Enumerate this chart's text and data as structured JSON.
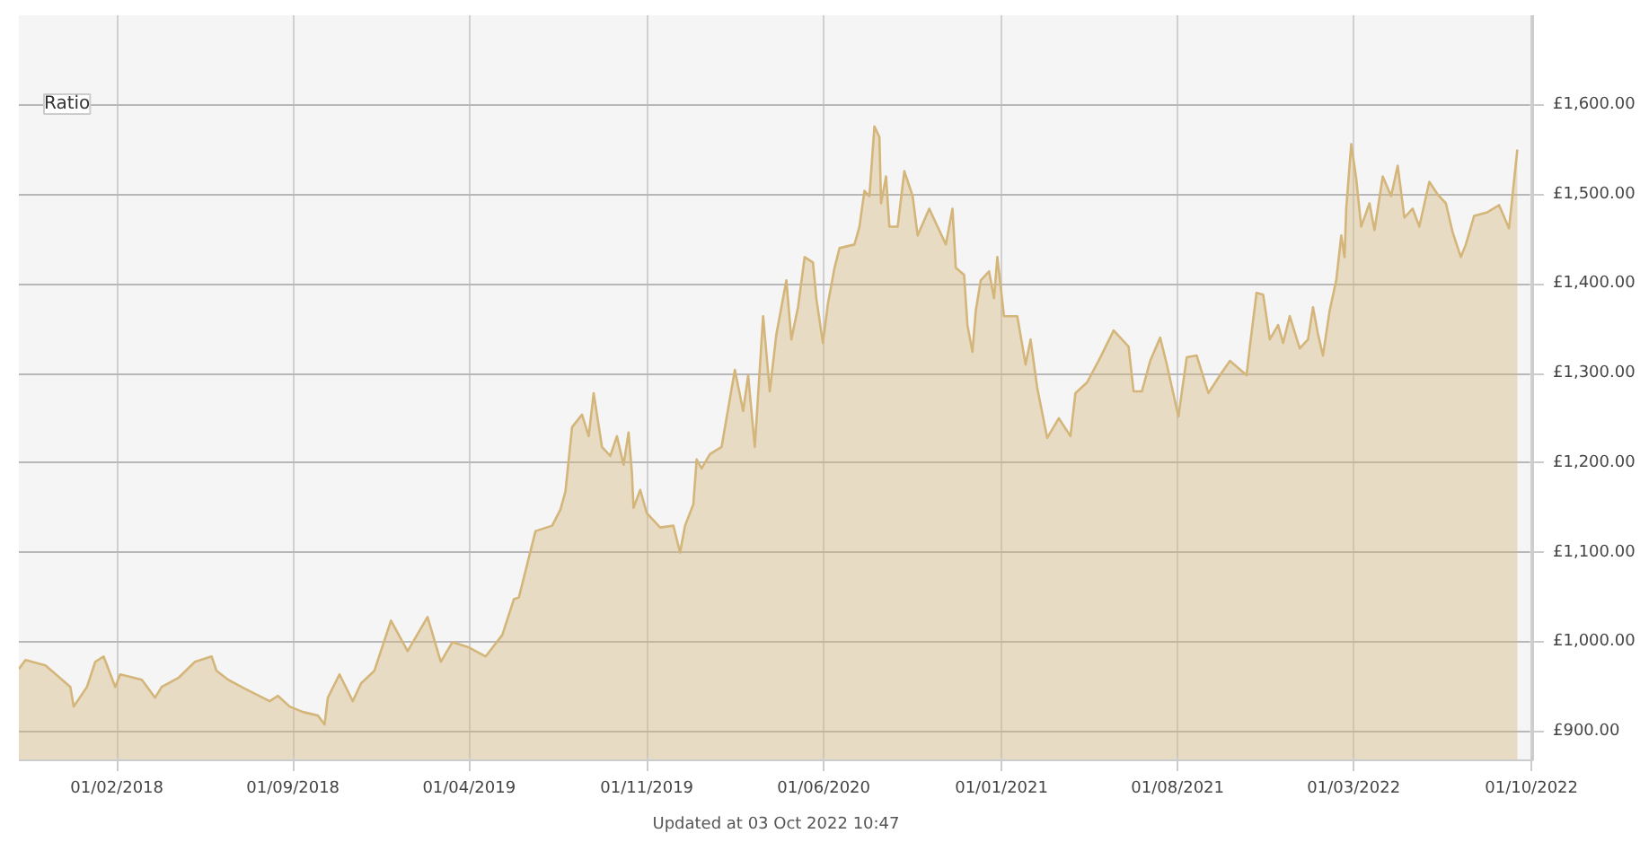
{
  "chart_data": {
    "type": "area",
    "annotations": [
      "Ratio",
      "Updated at 03 Oct 2022 10:47"
    ],
    "x": [
      "2017-10-06",
      "2017-10-14",
      "2017-11-07",
      "2017-12-07",
      "2017-12-11",
      "2017-12-27",
      "2018-01-06",
      "2018-01-16",
      "2018-01-30",
      "2018-02-05",
      "2018-03-03",
      "2018-03-19",
      "2018-03-27",
      "2018-04-16",
      "2018-05-06",
      "2018-05-26",
      "2018-06-01",
      "2018-06-15",
      "2018-07-05",
      "2018-08-04",
      "2018-08-14",
      "2018-08-28",
      "2018-09-13",
      "2018-10-01",
      "2018-10-09",
      "2018-10-13",
      "2018-10-27",
      "2018-11-12",
      "2018-11-22",
      "2018-12-08",
      "2018-12-28",
      "2019-01-17",
      "2019-02-10",
      "2019-02-26",
      "2019-03-12",
      "2019-04-01",
      "2019-04-21",
      "2019-05-11",
      "2019-05-25",
      "2019-05-31",
      "2019-06-20",
      "2019-07-10",
      "2019-07-20",
      "2019-07-26",
      "2019-07-30",
      "2019-08-03",
      "2019-08-15",
      "2019-08-23",
      "2019-08-29",
      "2019-09-08",
      "2019-09-18",
      "2019-09-26",
      "2019-10-04",
      "2019-10-10",
      "2019-10-14",
      "2019-10-16",
      "2019-10-24",
      "2019-11-01",
      "2019-11-17",
      "2019-12-03",
      "2019-12-11",
      "2019-12-17",
      "2019-12-27",
      "2019-12-31",
      "2020-01-06",
      "2020-01-16",
      "2020-01-30",
      "2020-02-15",
      "2020-02-25",
      "2020-03-02",
      "2020-03-10",
      "2020-03-20",
      "2020-03-28",
      "2020-04-05",
      "2020-04-17",
      "2020-04-23",
      "2020-05-01",
      "2020-05-09",
      "2020-05-19",
      "2020-05-23",
      "2020-05-31",
      "2020-06-06",
      "2020-06-14",
      "2020-06-20",
      "2020-07-08",
      "2020-07-14",
      "2020-07-20",
      "2020-07-26",
      "2020-08-01",
      "2020-08-07",
      "2020-08-09",
      "2020-08-15",
      "2020-08-19",
      "2020-08-29",
      "2020-09-06",
      "2020-09-16",
      "2020-09-22",
      "2020-10-06",
      "2020-10-16",
      "2020-10-26",
      "2020-11-03",
      "2020-11-07",
      "2020-11-17",
      "2020-11-21",
      "2020-11-27",
      "2020-12-01",
      "2020-12-07",
      "2020-12-17",
      "2020-12-23",
      "2020-12-27",
      "2021-01-04",
      "2021-01-20",
      "2021-01-30",
      "2021-02-05",
      "2021-02-13",
      "2021-02-25",
      "2021-03-11",
      "2021-03-25",
      "2021-03-31",
      "2021-04-14",
      "2021-04-30",
      "2021-05-16",
      "2021-06-03",
      "2021-06-09",
      "2021-06-19",
      "2021-06-29",
      "2021-07-11",
      "2021-07-19",
      "2021-08-02",
      "2021-08-12",
      "2021-08-24",
      "2021-09-07",
      "2021-09-21",
      "2021-10-03",
      "2021-10-23",
      "2021-10-27",
      "2021-11-04",
      "2021-11-12",
      "2021-11-20",
      "2021-11-30",
      "2021-12-06",
      "2021-12-14",
      "2021-12-26",
      "2022-01-05",
      "2022-01-11",
      "2022-01-17",
      "2022-01-23",
      "2022-01-31",
      "2022-02-08",
      "2022-02-14",
      "2022-02-18",
      "2022-02-20",
      "2022-02-26",
      "2022-03-04",
      "2022-03-10",
      "2022-03-20",
      "2022-03-26",
      "2022-04-05",
      "2022-04-15",
      "2022-04-23",
      "2022-05-01",
      "2022-05-11",
      "2022-05-19",
      "2022-05-31",
      "2022-06-10",
      "2022-06-20",
      "2022-06-28",
      "2022-07-08",
      "2022-07-14",
      "2022-07-24",
      "2022-08-09",
      "2022-08-23",
      "2022-09-04",
      "2022-09-14"
    ],
    "series": [
      {
        "color": "#d4b57a",
        "values": [
          970,
          980,
          974,
          950,
          928,
          950,
          978,
          984,
          950,
          964,
          958,
          938,
          950,
          960,
          978,
          984,
          968,
          958,
          948,
          934,
          940,
          928,
          922,
          918,
          908,
          938,
          964,
          934,
          954,
          968,
          1024,
          990,
          1028,
          978,
          1000,
          994,
          984,
          1008,
          1048,
          1050,
          1124,
          1130,
          1148,
          1168,
          1204,
          1240,
          1254,
          1230,
          1278,
          1218,
          1208,
          1230,
          1198,
          1234,
          1190,
          1150,
          1170,
          1144,
          1128,
          1130,
          1100,
          1130,
          1154,
          1204,
          1194,
          1210,
          1218,
          1304,
          1258,
          1298,
          1218,
          1364,
          1280,
          1344,
          1404,
          1338,
          1374,
          1430,
          1424,
          1384,
          1334,
          1378,
          1418,
          1440,
          1444,
          1464,
          1504,
          1498,
          1576,
          1564,
          1490,
          1520,
          1464,
          1464,
          1526,
          1498,
          1454,
          1484,
          1464,
          1444,
          1484,
          1418,
          1410,
          1354,
          1324,
          1370,
          1404,
          1414,
          1384,
          1430,
          1364,
          1364,
          1310,
          1338,
          1284,
          1228,
          1250,
          1230,
          1278,
          1290,
          1318,
          1348,
          1330,
          1280,
          1280,
          1314,
          1340,
          1310,
          1252,
          1318,
          1320,
          1278,
          1298,
          1314,
          1298,
          1330,
          1390,
          1388,
          1338,
          1354,
          1334,
          1364,
          1328,
          1338,
          1374,
          1344,
          1320,
          1370,
          1404,
          1454,
          1430,
          1484,
          1556,
          1518,
          1464,
          1490,
          1460,
          1520,
          1498,
          1532,
          1474,
          1484,
          1464,
          1514,
          1500,
          1490,
          1458,
          1430,
          1444,
          1476,
          1480,
          1488,
          1462,
          1550
        ]
      }
    ],
    "xlim": [
      "2017-10-06",
      "2022-10-03"
    ],
    "xticks": [
      {
        "value": "2018-02-01",
        "label": "01/02/2018"
      },
      {
        "value": "2018-09-01",
        "label": "01/09/2018"
      },
      {
        "value": "2019-04-01",
        "label": "01/04/2019"
      },
      {
        "value": "2019-11-01",
        "label": "01/11/2019"
      },
      {
        "value": "2020-06-01",
        "label": "01/06/2020"
      },
      {
        "value": "2021-01-01",
        "label": "01/01/2021"
      },
      {
        "value": "2021-08-01",
        "label": "01/08/2021"
      },
      {
        "value": "2022-03-01",
        "label": "01/03/2022"
      },
      {
        "value": "2022-10-01",
        "label": "01/10/2022"
      }
    ],
    "ylim": [
      868,
      1700
    ],
    "yticks": [
      {
        "value": 900,
        "label": "£900.00"
      },
      {
        "value": 1000,
        "label": "£1,000.00"
      },
      {
        "value": 1100,
        "label": "£1,100.00"
      },
      {
        "value": 1200,
        "label": "£1,200.00"
      },
      {
        "value": 1300,
        "label": "£1,300.00"
      },
      {
        "value": 1400,
        "label": "£1,400.00"
      },
      {
        "value": 1500,
        "label": "£1,500.00"
      },
      {
        "value": 1600,
        "label": "£1,600.00"
      }
    ],
    "grid": true
  }
}
